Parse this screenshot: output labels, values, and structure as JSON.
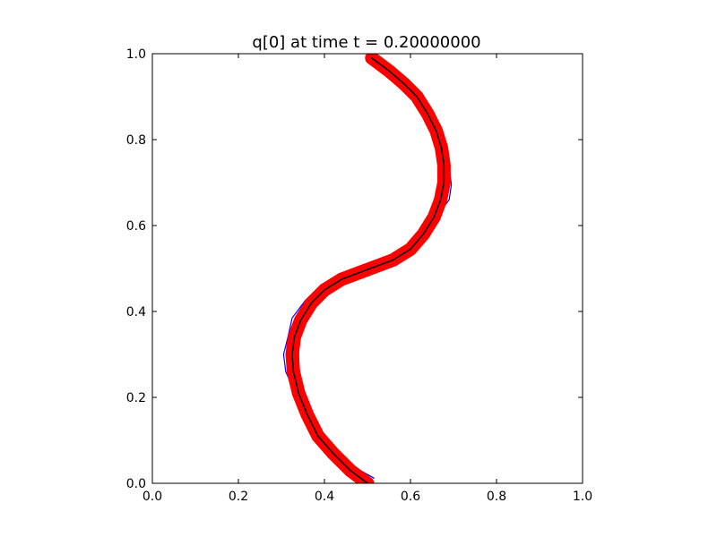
{
  "chart_data": {
    "type": "line",
    "title": "q[0] at time t =     0.20000000",
    "xlabel": "",
    "ylabel": "",
    "xlim": [
      0.0,
      1.0
    ],
    "ylim": [
      0.0,
      1.0
    ],
    "grid": false,
    "x_tick_labels": [
      "0.0",
      "0.2",
      "0.4",
      "0.6",
      "0.8",
      "1.0"
    ],
    "y_tick_labels": [
      "0.0",
      "0.2",
      "0.4",
      "0.6",
      "0.8",
      "1.0"
    ],
    "colors": {
      "thin_contours": "#0000ff",
      "centerline": "#000000",
      "thick_band": "#ff0000"
    },
    "series": [
      {
        "style": "thick-red",
        "x": [
          0.5,
          0.46,
          0.42,
          0.385,
          0.36,
          0.34,
          0.328,
          0.325,
          0.33,
          0.345,
          0.37,
          0.4,
          0.44,
          0.48,
          0.52,
          0.56,
          0.6,
          0.63,
          0.655,
          0.67,
          0.678,
          0.678,
          0.672,
          0.66,
          0.64,
          0.615,
          0.585,
          0.55,
          0.51
        ],
        "y": [
          0.0,
          0.03,
          0.07,
          0.11,
          0.16,
          0.21,
          0.26,
          0.3,
          0.34,
          0.38,
          0.42,
          0.45,
          0.475,
          0.49,
          0.505,
          0.52,
          0.545,
          0.58,
          0.62,
          0.66,
          0.7,
          0.74,
          0.78,
          0.82,
          0.86,
          0.9,
          0.93,
          0.96,
          0.99
        ]
      },
      {
        "style": "centerline",
        "x": [
          0.5,
          0.46,
          0.42,
          0.385,
          0.36,
          0.34,
          0.328,
          0.325,
          0.33,
          0.345,
          0.37,
          0.4,
          0.44,
          0.48,
          0.52,
          0.56,
          0.6,
          0.63,
          0.655,
          0.67,
          0.678,
          0.678,
          0.672,
          0.66,
          0.64,
          0.615,
          0.585,
          0.55,
          0.51
        ],
        "y": [
          0.0,
          0.03,
          0.07,
          0.11,
          0.16,
          0.21,
          0.26,
          0.3,
          0.34,
          0.38,
          0.42,
          0.45,
          0.475,
          0.49,
          0.505,
          0.52,
          0.545,
          0.58,
          0.62,
          0.66,
          0.7,
          0.74,
          0.78,
          0.82,
          0.86,
          0.9,
          0.93,
          0.96,
          0.99
        ]
      },
      {
        "style": "thin-blue",
        "x": [
          0.51,
          0.47,
          0.43,
          0.39,
          0.355,
          0.33,
          0.31,
          0.305,
          0.315,
          0.325,
          0.355,
          0.39,
          0.43,
          0.47,
          0.51,
          0.555,
          0.595,
          0.63,
          0.66,
          0.69,
          0.695,
          0.69,
          0.675,
          0.665,
          0.64,
          0.615,
          0.58,
          0.545,
          0.505
        ],
        "y": [
          0.01,
          0.035,
          0.075,
          0.115,
          0.165,
          0.215,
          0.26,
          0.3,
          0.34,
          0.385,
          0.425,
          0.455,
          0.48,
          0.495,
          0.505,
          0.515,
          0.54,
          0.575,
          0.62,
          0.66,
          0.695,
          0.735,
          0.78,
          0.82,
          0.855,
          0.895,
          0.925,
          0.955,
          0.985
        ]
      },
      {
        "style": "thin-blue",
        "x": [
          0.49,
          0.455,
          0.415,
          0.38,
          0.358,
          0.345,
          0.34,
          0.34,
          0.342,
          0.355,
          0.378,
          0.405,
          0.445,
          0.485,
          0.525,
          0.565,
          0.605,
          0.635,
          0.655,
          0.665,
          0.668,
          0.668,
          0.662,
          0.652,
          0.635,
          0.612,
          0.585,
          0.552,
          0.515
        ],
        "y": [
          0.0,
          0.028,
          0.068,
          0.112,
          0.16,
          0.21,
          0.26,
          0.305,
          0.345,
          0.385,
          0.42,
          0.45,
          0.472,
          0.488,
          0.502,
          0.52,
          0.548,
          0.582,
          0.62,
          0.66,
          0.7,
          0.74,
          0.785,
          0.825,
          0.865,
          0.905,
          0.935,
          0.965,
          0.995
        ]
      },
      {
        "style": "thin-blue",
        "x": [
          0.515,
          0.465,
          0.425,
          0.38,
          0.35,
          0.33,
          0.322,
          0.318,
          0.325,
          0.34,
          0.36,
          0.395,
          0.435,
          0.475,
          0.515,
          0.56,
          0.59,
          0.625,
          0.65,
          0.672,
          0.688,
          0.685,
          0.668,
          0.662,
          0.645,
          0.62,
          0.59,
          0.553,
          0.508
        ],
        "y": [
          0.012,
          0.04,
          0.08,
          0.12,
          0.168,
          0.218,
          0.262,
          0.302,
          0.342,
          0.382,
          0.418,
          0.448,
          0.47,
          0.485,
          0.498,
          0.515,
          0.538,
          0.572,
          0.615,
          0.655,
          0.695,
          0.738,
          0.782,
          0.822,
          0.862,
          0.902,
          0.932,
          0.962,
          0.992
        ]
      },
      {
        "style": "thin-blue",
        "x": [
          0.485,
          0.45,
          0.41,
          0.375,
          0.35,
          0.338,
          0.33,
          0.335,
          0.338,
          0.35,
          0.372,
          0.402,
          0.44,
          0.482,
          0.522,
          0.56,
          0.6,
          0.628,
          0.652,
          0.668,
          0.682,
          0.675,
          0.672,
          0.655,
          0.632,
          0.608,
          0.578,
          0.548,
          0.505
        ],
        "y": [
          0.005,
          0.032,
          0.07,
          0.108,
          0.155,
          0.205,
          0.255,
          0.298,
          0.338,
          0.378,
          0.415,
          0.445,
          0.468,
          0.482,
          0.495,
          0.512,
          0.535,
          0.568,
          0.608,
          0.648,
          0.692,
          0.732,
          0.775,
          0.818,
          0.858,
          0.898,
          0.928,
          0.958,
          0.988
        ]
      },
      {
        "style": "thin-blue",
        "x": [
          0.505,
          0.462,
          0.422,
          0.388,
          0.362,
          0.342,
          0.326,
          0.322,
          0.328,
          0.342,
          0.366,
          0.398,
          0.438,
          0.478,
          0.518,
          0.558,
          0.598,
          0.628,
          0.652,
          0.668,
          0.676,
          0.678,
          0.672,
          0.66,
          0.638,
          0.612,
          0.582,
          0.548,
          0.512
        ],
        "y": [
          0.002,
          0.032,
          0.072,
          0.112,
          0.162,
          0.212,
          0.262,
          0.302,
          0.342,
          0.382,
          0.422,
          0.452,
          0.478,
          0.495,
          0.51,
          0.525,
          0.55,
          0.585,
          0.625,
          0.665,
          0.705,
          0.745,
          0.785,
          0.825,
          0.865,
          0.905,
          0.935,
          0.965,
          0.995
        ]
      }
    ]
  }
}
